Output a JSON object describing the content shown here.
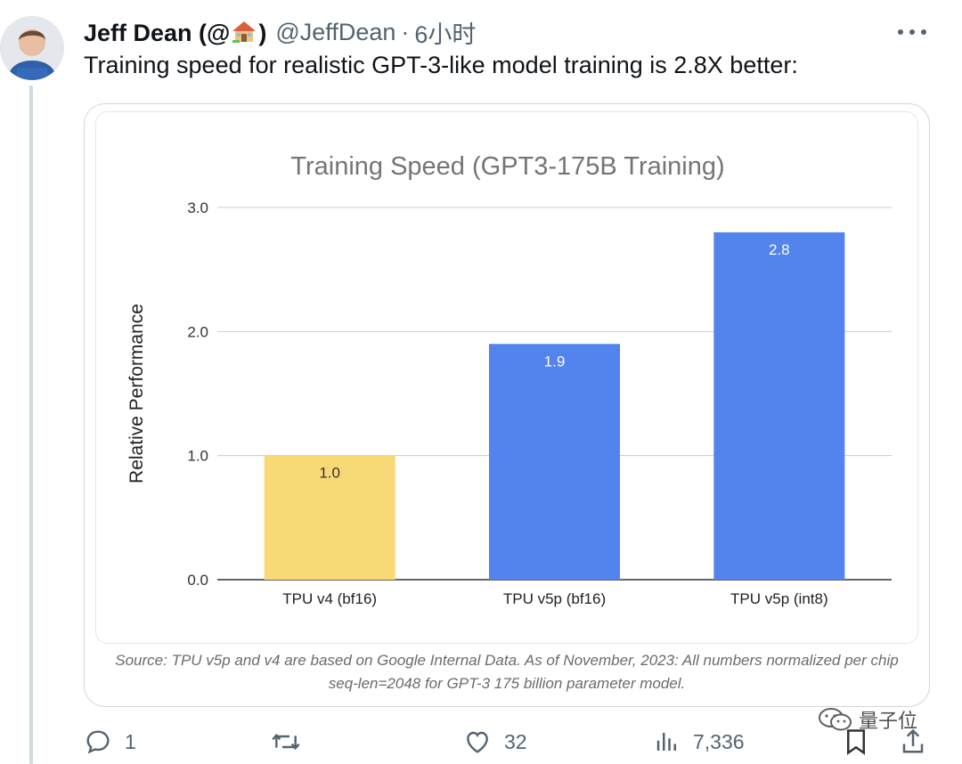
{
  "author": {
    "display_name_prefix": "Jeff Dean (@",
    "display_name_suffix": ")",
    "handle": "@JeffDean",
    "separator": "·",
    "time": "6小时"
  },
  "tweet": {
    "text": "Training speed for realistic GPT-3-like model training is 2.8X better:"
  },
  "chart_data": {
    "type": "bar",
    "title": "Training Speed (GPT3-175B Training)",
    "xlabel": "",
    "ylabel": "Relative Performance",
    "categories": [
      "TPU v4 (bf16)",
      "TPU v5p (bf16)",
      "TPU v5p (int8)"
    ],
    "values": [
      1.0,
      1.9,
      2.8
    ],
    "data_labels": [
      "1.0",
      "1.9",
      "2.8"
    ],
    "bar_colors": [
      "#f9d976",
      "#5383ec",
      "#5383ec"
    ],
    "ylim": [
      0,
      3
    ],
    "yticks": [
      "0.0",
      "1.0",
      "2.0",
      "3.0"
    ],
    "grid": true,
    "legend": "none"
  },
  "source_note": {
    "line1": "Source: TPU v5p and v4 are based on Google Internal Data. As of November, 2023: All numbers normalized per chip",
    "line2": "seq-len=2048 for GPT-3 175 billion parameter model."
  },
  "actions": {
    "reply_count": "1",
    "retweet_count": "",
    "like_count": "32",
    "views_count": "7,336"
  },
  "watermark": {
    "text": "量子位"
  },
  "icons": [
    "avatar",
    "house-emoji-icon",
    "more-icon",
    "reply-icon",
    "retweet-icon",
    "like-icon",
    "views-icon",
    "bookmark-icon",
    "share-icon",
    "wechat-icon"
  ]
}
